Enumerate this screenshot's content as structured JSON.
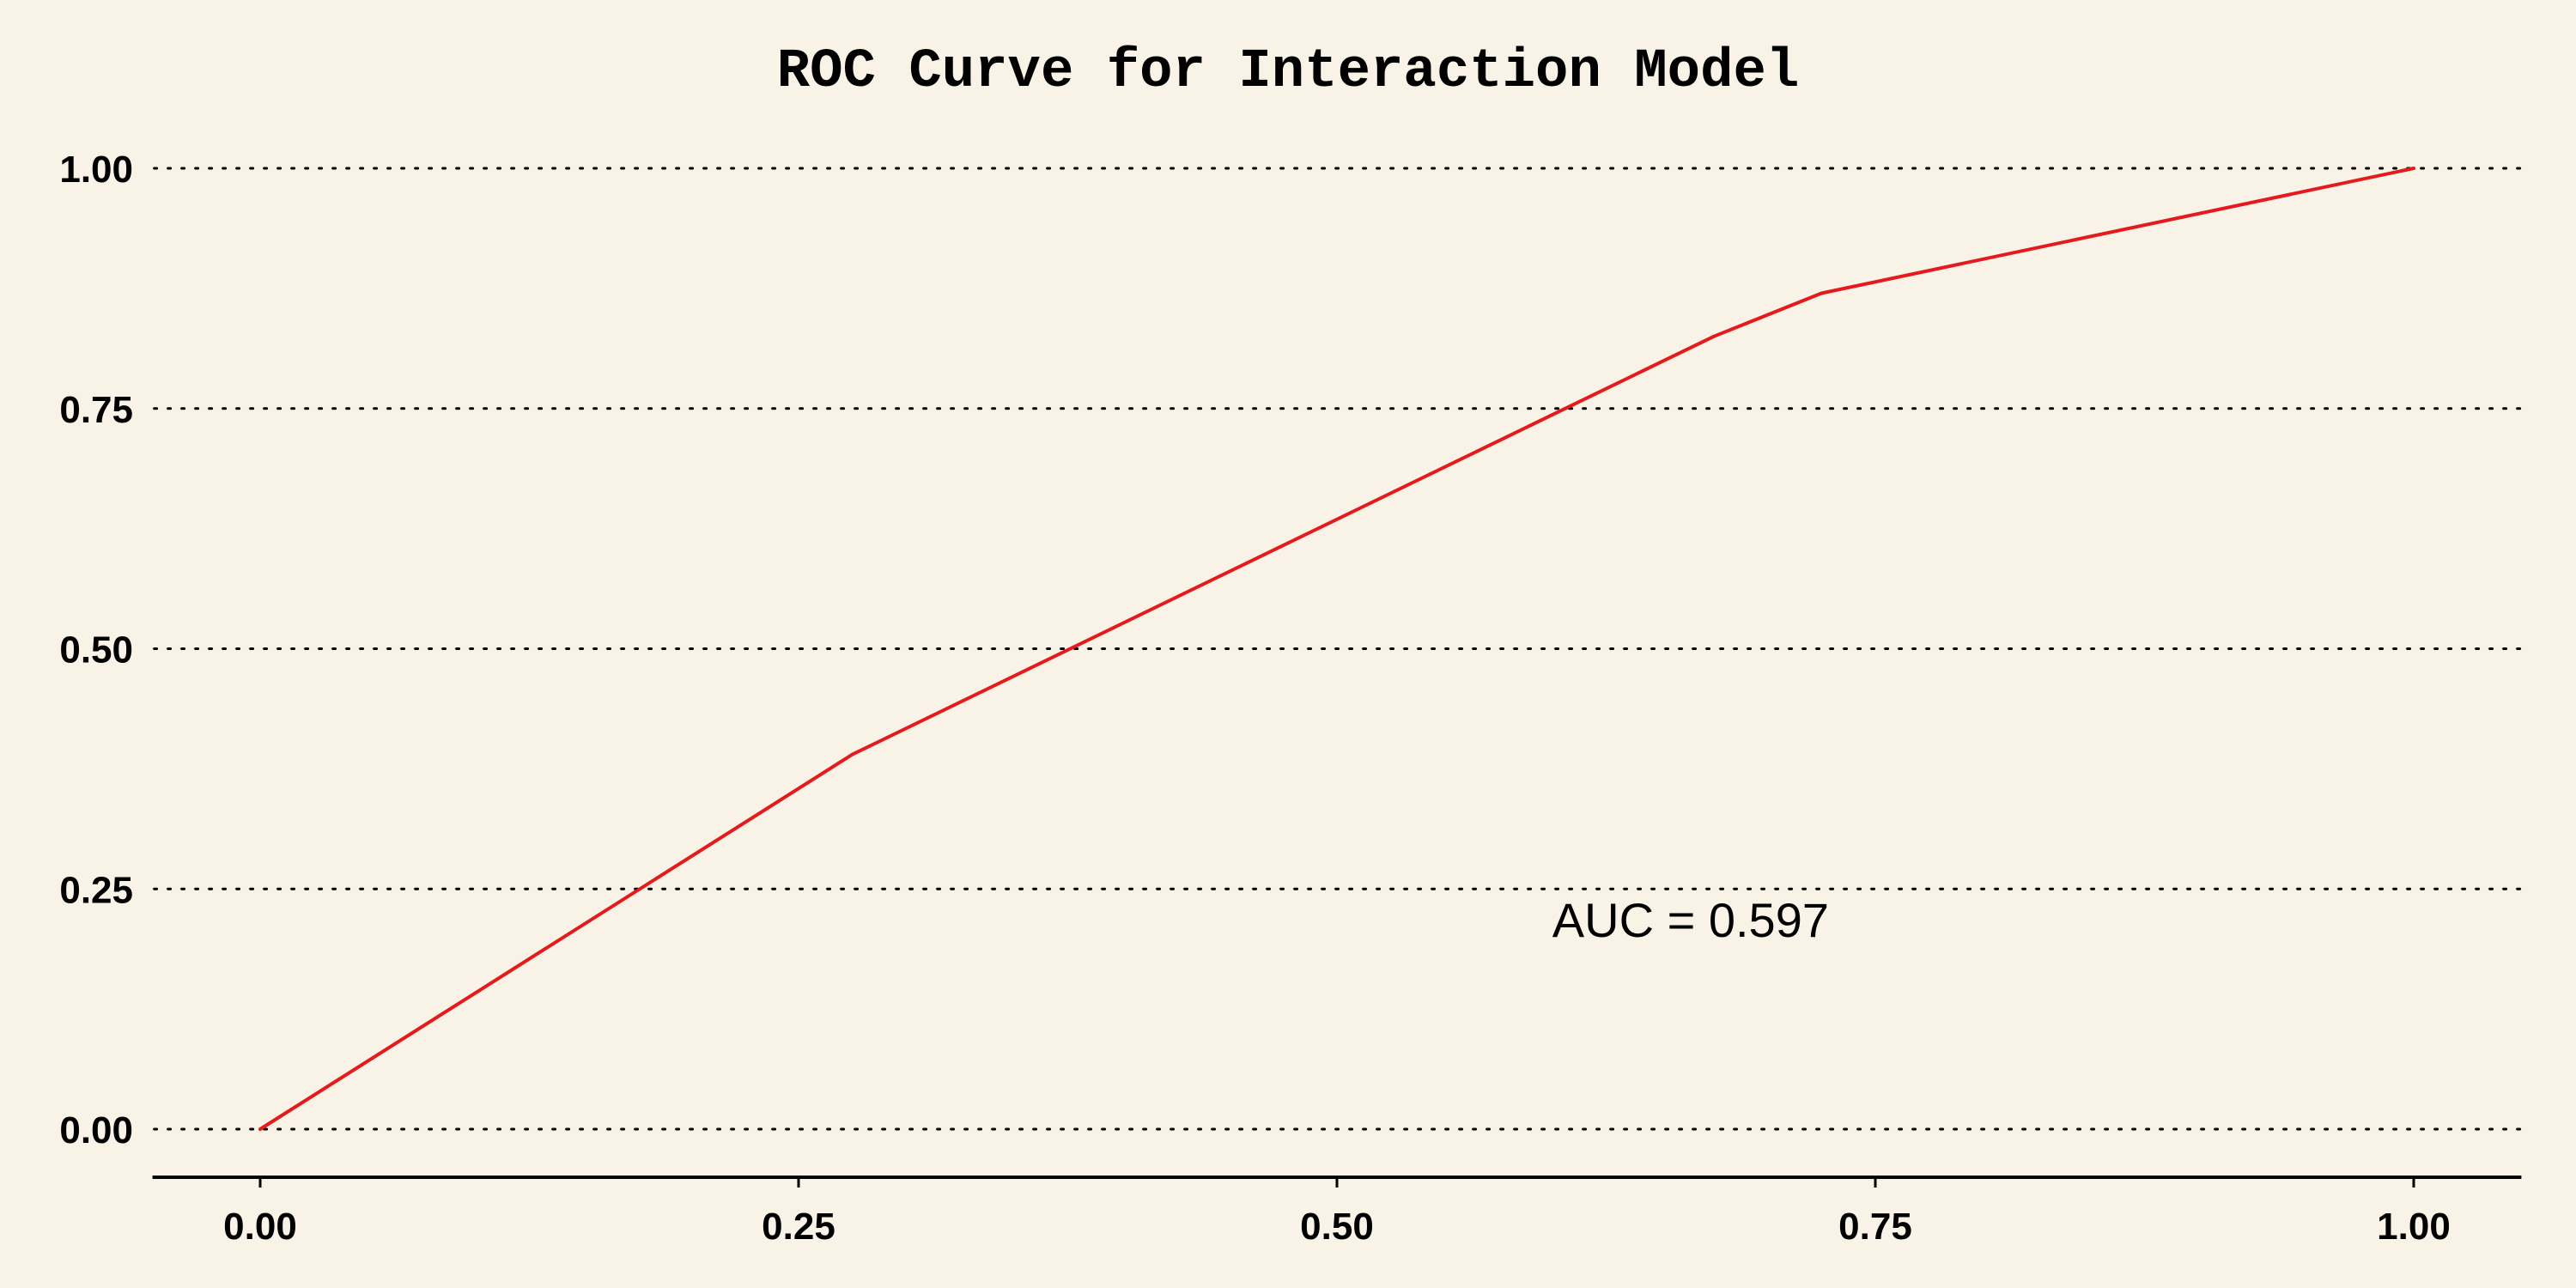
{
  "chart_data": {
    "type": "line",
    "title": "ROC Curve for Interaction Model",
    "xlabel": "",
    "ylabel": "",
    "xlim": [
      -0.05,
      1.05
    ],
    "ylim": [
      -0.05,
      1.05
    ],
    "x_ticks": [
      0.0,
      0.25,
      0.5,
      0.75,
      1.0
    ],
    "x_tick_labels": [
      "0.00",
      "0.25",
      "0.50",
      "0.75",
      "1.00"
    ],
    "y_ticks": [
      0.0,
      0.25,
      0.5,
      0.75,
      1.0
    ],
    "y_tick_labels": [
      "0.00",
      "0.25",
      "0.50",
      "0.75",
      "1.00"
    ],
    "grid": "horizontal-dotted",
    "series": [
      {
        "color": "#e41a1c",
        "points": [
          {
            "x": 0.0,
            "y": 0.0
          },
          {
            "x": 0.275,
            "y": 0.39
          },
          {
            "x": 0.675,
            "y": 0.825
          },
          {
            "x": 0.725,
            "y": 0.87
          },
          {
            "x": 1.0,
            "y": 1.0
          }
        ]
      }
    ],
    "annotations": [
      {
        "text": "AUC = 0.597",
        "x": 0.6,
        "y": 0.2
      }
    ]
  }
}
